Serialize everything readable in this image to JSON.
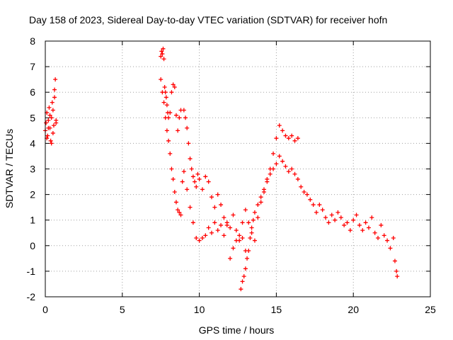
{
  "chart_data": {
    "type": "scatter",
    "title": "Day 158 of 2023, Sidereal Day-to-day VTEC variation (SDTVAR) for receiver hofn",
    "xlabel": "GPS time / hours",
    "ylabel": "SDTVAR / TECUs",
    "xlim": [
      0,
      25
    ],
    "ylim": [
      -2,
      8
    ],
    "xticks": [
      0,
      5,
      10,
      15,
      20,
      25
    ],
    "yticks": [
      -2,
      -1,
      0,
      1,
      2,
      3,
      4,
      5,
      6,
      7,
      8
    ],
    "grid": true,
    "marker": "+",
    "series": [
      {
        "name": "SDTVAR",
        "color": "#ff0000",
        "x": [
          0.0,
          0.05,
          0.1,
          0.15,
          0.2,
          0.25,
          0.3,
          0.35,
          0.4,
          0.45,
          0.5,
          0.55,
          0.6,
          0.65,
          0.7,
          0.1,
          0.2,
          0.3,
          0.4,
          0.5,
          0.6,
          0.7,
          7.5,
          7.55,
          7.6,
          7.65,
          7.7,
          7.75,
          7.8,
          7.85,
          7.9,
          7.95,
          8.0,
          8.1,
          8.2,
          8.3,
          8.4,
          8.5,
          8.6,
          8.7,
          8.8,
          7.5,
          7.6,
          7.7,
          7.8,
          7.9,
          8.0,
          8.1,
          8.2,
          8.3,
          8.4,
          8.5,
          8.6,
          8.7,
          8.8,
          8.9,
          9.0,
          9.2,
          9.4,
          9.6,
          9.8,
          10.0,
          10.2,
          10.4,
          10.6,
          10.8,
          11.0,
          11.2,
          11.4,
          11.6,
          11.8,
          12.0,
          12.2,
          12.4,
          12.6,
          12.8,
          13.0,
          9.0,
          9.1,
          9.2,
          9.3,
          9.4,
          9.5,
          9.6,
          9.7,
          9.8,
          9.9,
          10.0,
          10.2,
          10.4,
          10.6,
          10.8,
          11.0,
          11.2,
          11.4,
          11.6,
          11.8,
          12.0,
          12.2,
          12.4,
          12.6,
          12.8,
          12.7,
          12.8,
          12.9,
          13.0,
          13.1,
          13.2,
          13.3,
          13.4,
          13.5,
          13.6,
          13.8,
          14.0,
          14.2,
          14.4,
          14.6,
          14.8,
          15.0,
          15.2,
          15.4,
          15.6,
          15.8,
          16.0,
          16.2,
          16.4,
          13.0,
          13.2,
          13.4,
          13.6,
          13.8,
          14.0,
          14.2,
          14.4,
          14.6,
          14.8,
          15.0,
          15.2,
          15.4,
          15.6,
          15.8,
          16.0,
          16.2,
          16.4,
          16.6,
          16.8,
          17.0,
          17.2,
          17.4,
          17.6,
          17.8,
          18.0,
          18.2,
          18.4,
          18.6,
          18.8,
          19.0,
          19.2,
          19.4,
          19.6,
          19.8,
          20.0,
          20.2,
          20.4,
          20.6,
          20.8,
          21.0,
          21.2,
          21.4,
          21.6,
          21.8,
          22.0,
          22.2,
          22.4,
          22.6,
          22.7,
          22.8,
          22.85
        ],
        "y": [
          4.5,
          4.8,
          5.2,
          4.3,
          4.9,
          5.4,
          4.6,
          4.1,
          5.0,
          5.6,
          4.4,
          4.7,
          5.8,
          6.5,
          4.9,
          4.2,
          4.6,
          5.1,
          4.0,
          5.3,
          6.1,
          4.8,
          7.4,
          7.6,
          7.5,
          7.7,
          7.3,
          6.2,
          6.0,
          5.8,
          5.5,
          5.2,
          5.0,
          5.2,
          6.0,
          6.3,
          6.2,
          5.1,
          4.5,
          5.0,
          5.3,
          6.5,
          6.0,
          5.6,
          5.0,
          4.5,
          4.1,
          3.6,
          3.0,
          2.6,
          2.1,
          1.7,
          1.4,
          1.3,
          1.2,
          2.5,
          2.9,
          2.2,
          1.5,
          0.9,
          0.3,
          0.2,
          0.3,
          0.4,
          0.7,
          0.5,
          0.9,
          0.6,
          0.8,
          0.4,
          0.9,
          0.7,
          -0.1,
          0.2,
          0.4,
          0.3,
          -0.2,
          5.3,
          5.0,
          4.6,
          4.0,
          3.4,
          3.0,
          2.7,
          2.5,
          2.3,
          2.8,
          2.6,
          2.2,
          2.7,
          2.5,
          1.9,
          1.5,
          2.0,
          1.6,
          1.1,
          0.8,
          -0.5,
          1.2,
          0.6,
          0.2,
          0.9,
          -1.7,
          -1.4,
          -1.2,
          -0.9,
          -0.5,
          -0.2,
          0.3,
          0.7,
          1.0,
          1.3,
          1.6,
          1.9,
          2.2,
          2.6,
          3.0,
          3.6,
          4.2,
          4.7,
          4.5,
          4.3,
          4.2,
          4.3,
          4.1,
          4.2,
          1.4,
          0.9,
          0.5,
          0.2,
          1.1,
          1.7,
          2.1,
          2.5,
          2.8,
          3.0,
          3.2,
          3.5,
          3.3,
          3.1,
          2.9,
          3.0,
          2.8,
          2.6,
          2.3,
          2.1,
          2.0,
          1.8,
          1.6,
          1.3,
          1.6,
          1.4,
          1.1,
          0.9,
          1.2,
          1.0,
          1.3,
          1.1,
          0.8,
          0.9,
          0.6,
          1.0,
          1.2,
          0.8,
          0.6,
          0.9,
          0.7,
          1.1,
          0.5,
          0.3,
          0.8,
          0.4,
          0.2,
          -0.1,
          0.3,
          -0.6,
          -1.0,
          -1.2
        ]
      }
    ]
  }
}
